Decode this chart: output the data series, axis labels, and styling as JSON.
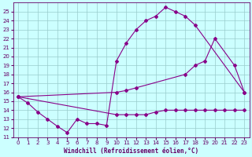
{
  "line1_x": [
    0,
    1,
    2,
    3,
    4,
    5,
    6,
    7,
    8,
    9,
    10,
    11,
    12,
    13,
    14,
    15,
    16,
    17,
    18,
    23
  ],
  "line1_y": [
    15.5,
    14.8,
    13.8,
    13.0,
    12.2,
    11.5,
    13.0,
    12.5,
    12.5,
    12.3,
    19.5,
    21.5,
    23.0,
    24.0,
    24.5,
    25.5,
    25.0,
    24.5,
    23.5,
    16.0
  ],
  "line2_x": [
    0,
    10,
    11,
    12,
    17,
    18,
    19,
    20,
    22,
    23
  ],
  "line2_y": [
    15.5,
    16.0,
    16.2,
    16.5,
    18.0,
    19.0,
    19.5,
    22.0,
    19.0,
    16.0
  ],
  "line3_x": [
    0,
    10,
    11,
    12,
    13,
    14,
    15,
    16,
    17,
    18,
    19,
    20,
    21,
    22,
    23
  ],
  "line3_y": [
    15.5,
    13.5,
    13.5,
    13.5,
    13.5,
    13.8,
    14.0,
    14.0,
    14.0,
    14.0,
    14.0,
    14.0,
    14.0,
    14.0,
    14.0
  ],
  "color": "#880088",
  "bg_color": "#ccffff",
  "grid_color": "#99cccc",
  "xlabel": "Windchill (Refroidissement éolien,°C)",
  "xlim": [
    -0.5,
    23.5
  ],
  "ylim": [
    11,
    26
  ],
  "yticks": [
    11,
    12,
    13,
    14,
    15,
    16,
    17,
    18,
    19,
    20,
    21,
    22,
    23,
    24,
    25
  ],
  "xticks": [
    0,
    1,
    2,
    3,
    4,
    5,
    6,
    7,
    8,
    9,
    10,
    11,
    12,
    13,
    14,
    15,
    16,
    17,
    18,
    19,
    20,
    21,
    22,
    23
  ],
  "font_color": "#660066",
  "tick_fontsize": 5.0,
  "xlabel_fontsize": 5.5
}
